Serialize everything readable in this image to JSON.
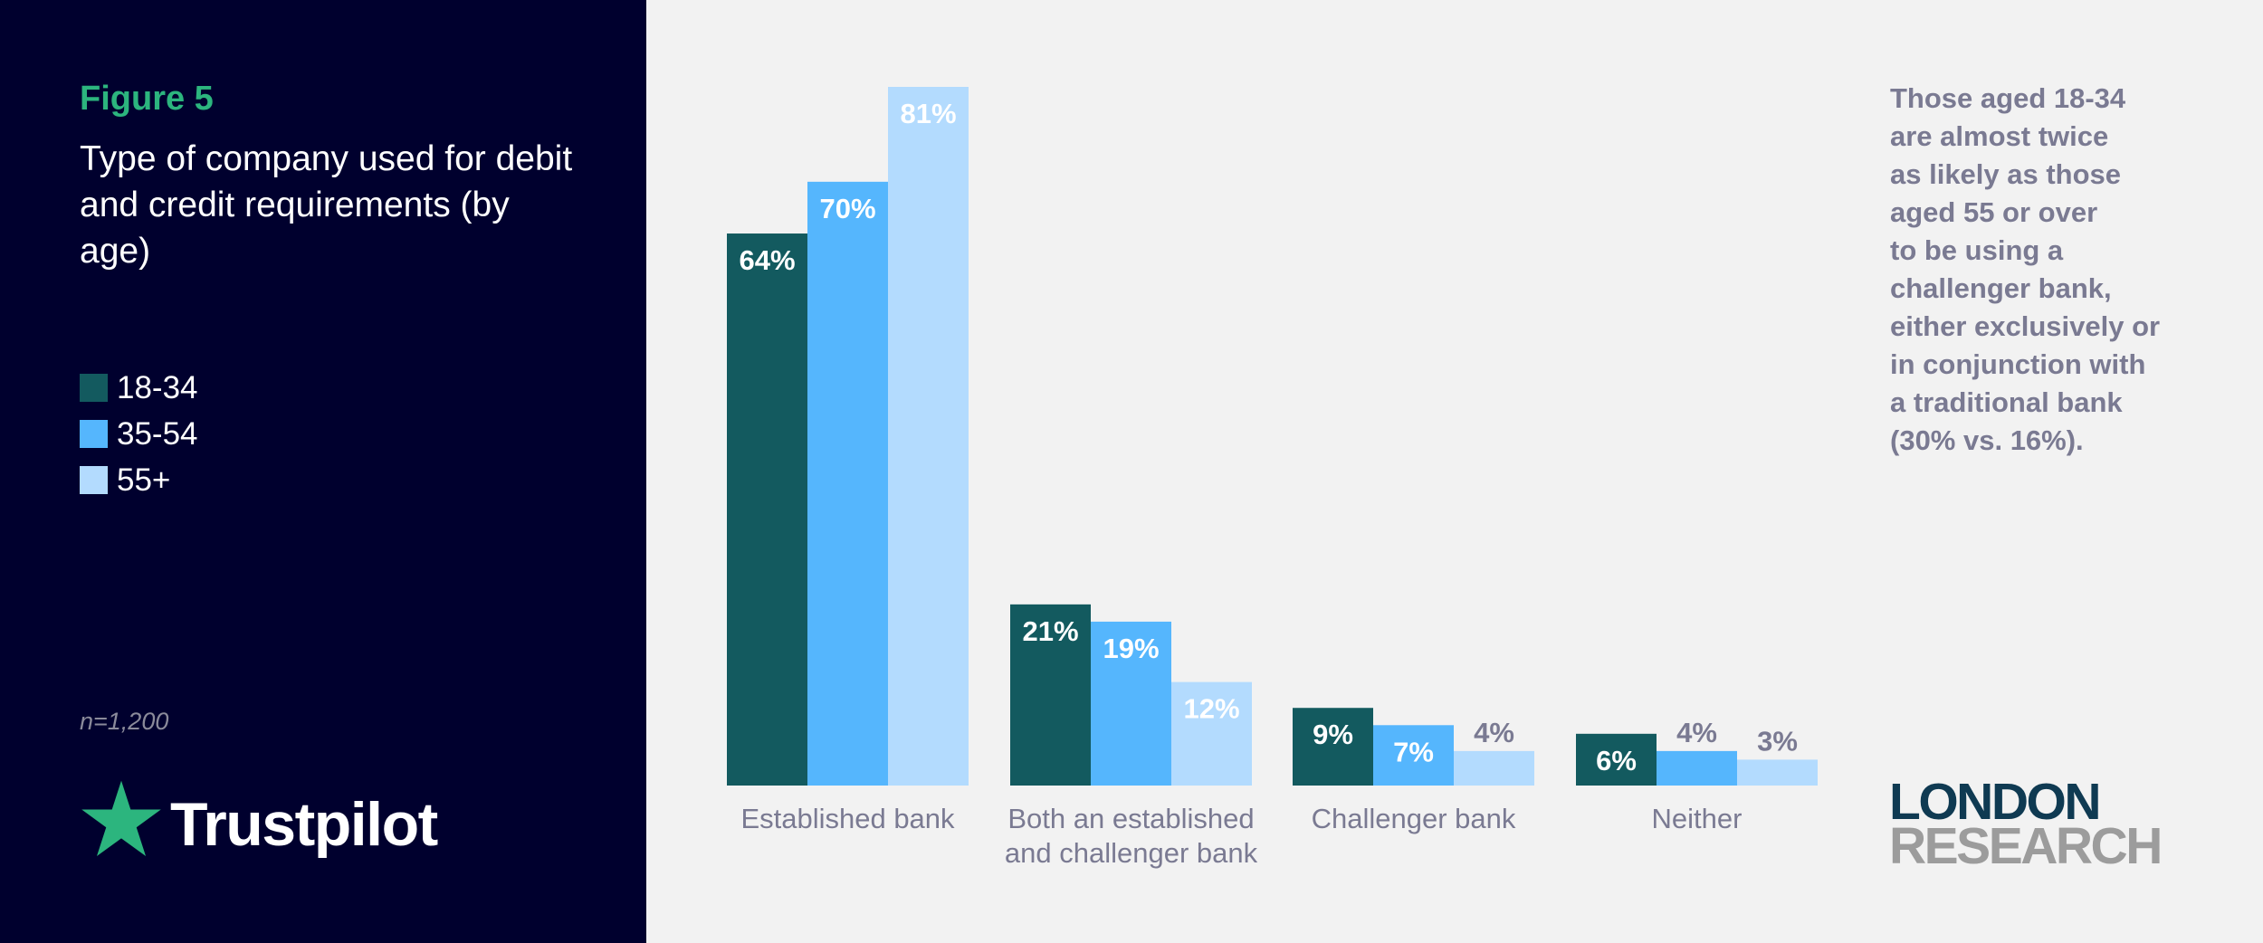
{
  "figure_label": "Figure 5",
  "figure_title": "Type of company used for debit and credit requirements (by age)",
  "sample_size": "n=1,200",
  "brand": {
    "trustpilot": "Trustpilot",
    "london_research_line1": "LONDON",
    "london_research_line2": "RESEARCH"
  },
  "annotation": "Those aged 18-34\nare almost twice\nas likely as those\naged 55 or over\nto be using a\nchallenger bank,\neither exclusively or\nin conjunction with\na traditional bank\n(30% vs. 16%).",
  "colors": {
    "panel_bg": "#00002e",
    "page_bg": "#f2f2f2",
    "accent_green": "#2cb57e",
    "series_18_34": "#135a5f",
    "series_35_54": "#55b6fd",
    "series_55_plus": "#b3dbfe",
    "axis_text": "#7a7a92"
  },
  "icons": {
    "trustpilot_logo": "star-icon"
  },
  "chart_data": {
    "type": "bar",
    "categories": [
      "Established bank",
      "Both an established\nand challenger bank",
      "Challenger bank",
      "Neither"
    ],
    "series": [
      {
        "name": "18-34",
        "values": [
          64,
          21,
          9,
          6
        ],
        "labels": [
          "64%",
          "21%",
          "9%",
          "6%"
        ]
      },
      {
        "name": "35-54",
        "values": [
          70,
          19,
          7,
          4
        ],
        "labels": [
          "70%",
          "19%",
          "7%",
          "4%"
        ]
      },
      {
        "name": "55+",
        "values": [
          81,
          12,
          4,
          3
        ],
        "labels": [
          "81%",
          "12%",
          "4%",
          "3%"
        ]
      }
    ],
    "ylim": [
      0,
      81
    ],
    "grid": false,
    "legend_position": "left-panel"
  }
}
